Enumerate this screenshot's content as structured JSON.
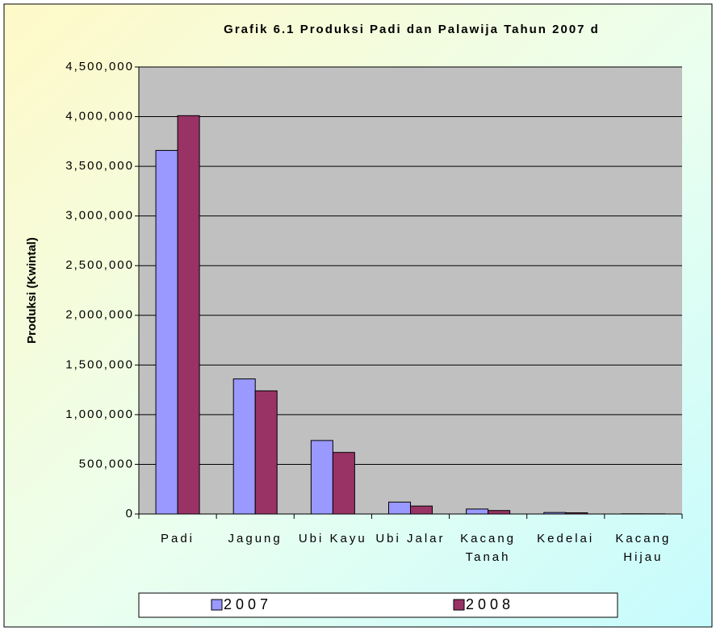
{
  "chart_data": {
    "type": "bar",
    "title": "Grafik 6.1 Produksi Padi dan Palawija Tahun 2007 d",
    "y_label": "Produksi (Kwintal)",
    "categories": [
      "Padi",
      "Jagung",
      "Ubi Kayu",
      "Ubi Jalar",
      "Kacang Tanah",
      "Kedelai",
      "Kacang Hijau"
    ],
    "series": [
      {
        "name": "2007",
        "color": "#9999ff",
        "values": [
          3660000,
          1360000,
          740000,
          120000,
          50000,
          15000,
          2000
        ]
      },
      {
        "name": "2008",
        "color": "#993366",
        "values": [
          4010000,
          1240000,
          620000,
          80000,
          35000,
          12000,
          1500
        ]
      }
    ],
    "ylim": [
      0,
      4500000
    ],
    "yticks": [
      0,
      {
        "value": 500000,
        "label": "500,000"
      },
      {
        "value": 1000000,
        "label": "1,000,000"
      },
      {
        "value": 1500000,
        "label": "1,500,000"
      },
      {
        "value": 2000000,
        "label": "2,000,000"
      },
      {
        "value": 2500000,
        "label": "2,500,000"
      },
      {
        "value": 3000000,
        "label": "3,000,000"
      },
      {
        "value": 3500000,
        "label": "3,500,000"
      },
      {
        "value": 4000000,
        "label": "4,000,000"
      },
      {
        "value": 4500000,
        "label": "4,500,000"
      }
    ],
    "grid": true,
    "legend": "bottom"
  }
}
